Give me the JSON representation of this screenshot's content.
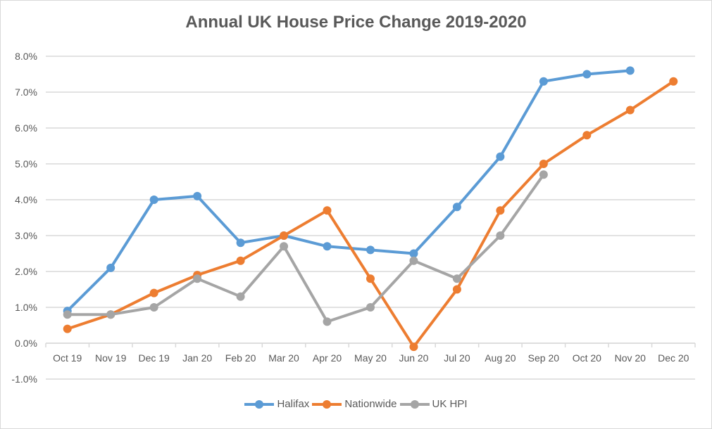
{
  "chart_data": {
    "type": "line",
    "title": "Annual UK House Price Change 2019-2020",
    "xlabel": "",
    "ylabel": "",
    "categories": [
      "Oct 19",
      "Nov 19",
      "Dec 19",
      "Jan 20",
      "Feb 20",
      "Mar 20",
      "Apr 20",
      "May 20",
      "Jun 20",
      "Jul 20",
      "Aug 20",
      "Sep 20",
      "Oct 20",
      "Nov 20",
      "Dec 20"
    ],
    "ylim": [
      -1.0,
      8.0
    ],
    "yticks": [
      "8.0%",
      "7.0%",
      "6.0%",
      "5.0%",
      "4.0%",
      "3.0%",
      "2.0%",
      "1.0%",
      "0.0%",
      "-1.0%"
    ],
    "ytick_values": [
      8,
      7,
      6,
      5,
      4,
      3,
      2,
      1,
      0,
      -1
    ],
    "grid": true,
    "legend_position": "bottom",
    "series": [
      {
        "name": "Halifax",
        "color": "#5b9bd5",
        "values": [
          0.9,
          2.1,
          4.0,
          4.1,
          2.8,
          3.0,
          2.7,
          2.6,
          2.5,
          3.8,
          5.2,
          7.3,
          7.5,
          7.6,
          null
        ]
      },
      {
        "name": "Nationwide",
        "color": "#ed7d31",
        "values": [
          0.4,
          0.8,
          1.4,
          1.9,
          2.3,
          3.0,
          3.7,
          1.8,
          -0.1,
          1.5,
          3.7,
          5.0,
          5.8,
          6.5,
          7.3
        ]
      },
      {
        "name": "UK HPI",
        "color": "#a5a5a5",
        "values": [
          0.8,
          0.8,
          1.0,
          1.8,
          1.3,
          2.7,
          0.6,
          1.0,
          2.3,
          1.8,
          3.0,
          4.7,
          null,
          null,
          null
        ]
      }
    ]
  }
}
